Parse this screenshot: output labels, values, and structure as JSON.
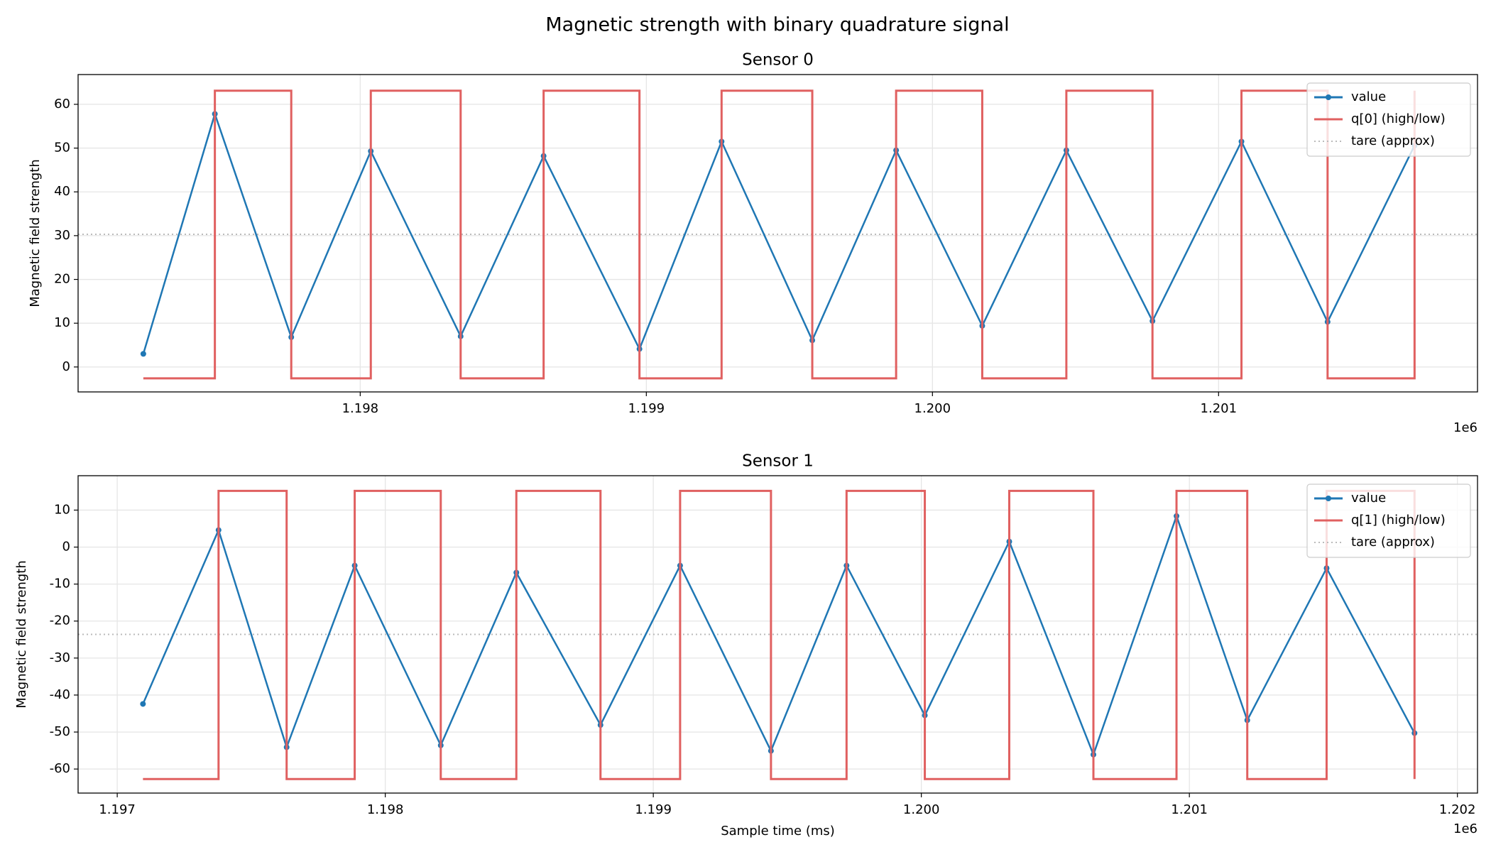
{
  "title": "Magnetic strength with binary quadrature signal",
  "chart_data": [
    {
      "type": "line",
      "title": "Sensor 0",
      "y_label": "Magnetic field strength",
      "x_offset_label": "1e6",
      "x": [
        1.197242,
        1.197492,
        1.197759,
        1.198037,
        1.198351,
        1.198641,
        1.198976,
        1.199263,
        1.19958,
        1.199873,
        1.200174,
        1.200468,
        1.200769,
        1.20108,
        1.201381,
        1.201685
      ],
      "series": [
        {
          "name": "value",
          "color": "#1f77b4",
          "marker": true,
          "values": [
            3.0,
            57.8,
            6.8,
            49.3,
            7.0,
            48.2,
            4.1,
            51.5,
            6.1,
            49.5,
            9.4,
            49.5,
            10.5,
            51.5,
            10.3,
            50.6
          ]
        },
        {
          "name": "q[0] (high/low)",
          "color": "#e06060",
          "step": "post",
          "values": [
            -2.6,
            63.1,
            -2.6,
            63.1,
            -2.6,
            63.1,
            -2.6,
            63.1,
            -2.6,
            63.1,
            -2.6,
            63.1,
            -2.6,
            63.1,
            -2.6,
            63.1
          ]
        }
      ],
      "hlines": [
        {
          "name": "tare (approx)",
          "color": "#bbbbbb",
          "style": "dotted",
          "value": 30.3
        }
      ],
      "xlim": [
        1.197014,
        1.201905
      ],
      "ylim": [
        -5.7,
        66.8
      ],
      "xticks": [
        1.198,
        1.199,
        {
          "value": 1.2,
          "label": "1.200"
        },
        1.201
      ],
      "yticks": [
        0,
        10,
        20,
        30,
        40,
        50,
        60
      ],
      "grid": true,
      "legend": "upper right"
    },
    {
      "type": "line",
      "title": "Sensor 1",
      "y_label": "Magnetic field strength",
      "x_label": "Sample time (ms)",
      "x_offset_label": "1e6",
      "x": [
        1.197096,
        1.197378,
        1.197632,
        1.197886,
        1.198207,
        1.198489,
        1.198803,
        1.1991,
        1.199439,
        1.199721,
        1.200013,
        1.200328,
        1.200642,
        1.200952,
        1.201216,
        1.201512,
        1.20184
      ],
      "series": [
        {
          "name": "value",
          "color": "#1f77b4",
          "marker": true,
          "values": [
            -42.4,
            4.6,
            -54.1,
            -5.0,
            -53.6,
            -6.9,
            -48.1,
            -5.0,
            -55.1,
            -5.0,
            -45.5,
            1.5,
            -56.1,
            8.4,
            -46.8,
            -5.7,
            -50.3
          ]
        },
        {
          "name": "q[1] (high/low)",
          "color": "#e06060",
          "step": "post",
          "values": [
            -62.7,
            15.2,
            -62.7,
            15.2,
            -62.7,
            15.2,
            -62.7,
            15.2,
            -62.7,
            15.2,
            -62.7,
            15.2,
            -62.7,
            15.2,
            -62.7,
            15.2,
            -62.7
          ]
        }
      ],
      "hlines": [
        {
          "name": "tare (approx)",
          "color": "#bbbbbb",
          "style": "dotted",
          "value": -23.6
        }
      ],
      "xlim": [
        1.196854,
        1.202075
      ],
      "ylim": [
        -66.5,
        19.3
      ],
      "xticks": [
        1.197,
        1.198,
        1.199,
        {
          "value": 1.2,
          "label": "1.200"
        },
        1.201,
        1.202
      ],
      "yticks": [
        -60,
        -50,
        -40,
        -30,
        -20,
        -10,
        0,
        10
      ],
      "grid": true,
      "legend": "upper right"
    }
  ]
}
